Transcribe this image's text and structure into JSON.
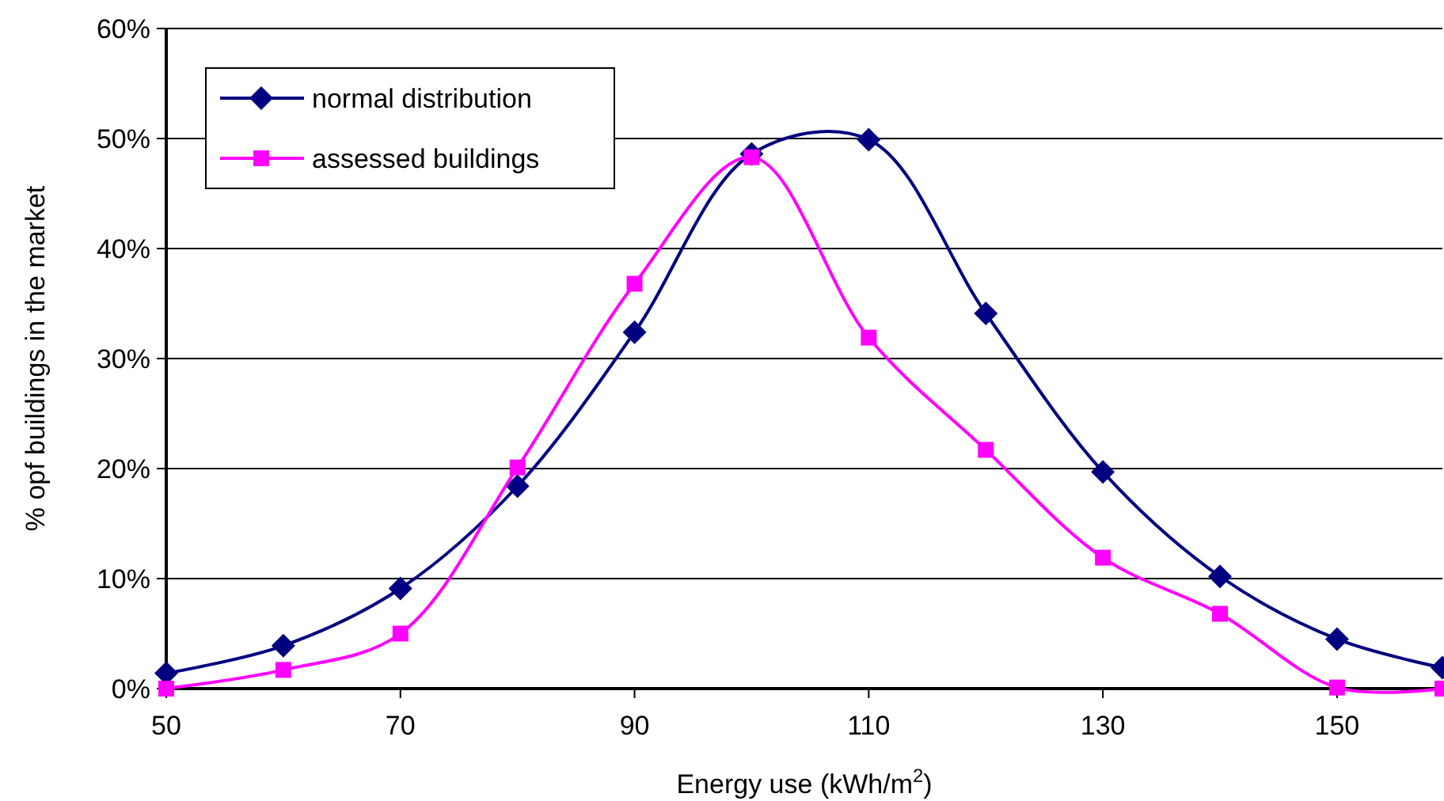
{
  "chart_data": {
    "type": "line",
    "xlabel": "Energy use (kWh/m$^{2}$)",
    "ylabel": "% opf buildings in the market",
    "xlim": [
      50,
      159
    ],
    "xticks": [
      50,
      70,
      90,
      110,
      130,
      150
    ],
    "ylim": [
      0,
      60
    ],
    "yticks": [
      {
        "value": 0,
        "label": "0%"
      },
      {
        "value": 10,
        "label": "10%"
      },
      {
        "value": 20,
        "label": "20%"
      },
      {
        "value": 30,
        "label": "30%"
      },
      {
        "value": 40,
        "label": "40%"
      },
      {
        "value": 50,
        "label": "50%"
      },
      {
        "value": 60,
        "label": "60%"
      }
    ],
    "grid": "y",
    "legend": "top left",
    "series": [
      {
        "name": "normal distribution",
        "color": "#000080",
        "marker": "diamond",
        "x": [
          50,
          60,
          70,
          80,
          90,
          100,
          110,
          120,
          130,
          140,
          150,
          159
        ],
        "values": [
          1.4,
          3.9,
          9.1,
          18.4,
          32.4,
          48.6,
          49.9,
          34.1,
          19.7,
          10.2,
          4.5,
          1.9
        ]
      },
      {
        "name": "assessed buildings",
        "color": "#ff00ff",
        "marker": "square",
        "x": [
          50,
          60,
          70,
          80,
          90,
          100,
          110,
          120,
          130,
          140,
          150,
          159
        ],
        "values": [
          0,
          1.7,
          5.0,
          20.1,
          36.8,
          48.3,
          31.9,
          21.7,
          11.9,
          6.8,
          0.1,
          0
        ]
      }
    ]
  }
}
